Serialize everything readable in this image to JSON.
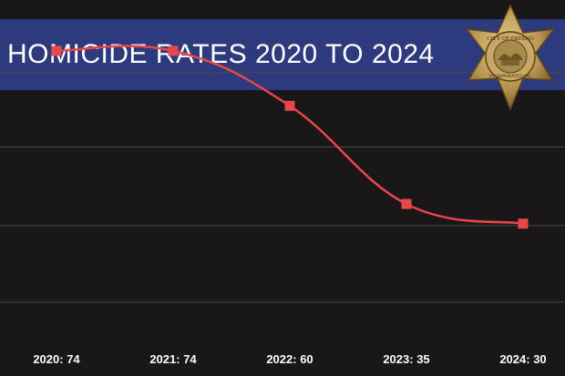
{
  "title": "HOMICIDE RATES 2020 TO 2024",
  "badge": {
    "icon": "city-of-fresno-police-badge-icon",
    "text_top": "CITY OF FRESNO",
    "text_bottom": "INCORPORATED 1885"
  },
  "colors": {
    "background": "#1a1718",
    "banner": "#2d3a7d",
    "line": "#e8474a",
    "marker": "#e8474a",
    "grid": "#4a4748",
    "badge_gold": "#b89550"
  },
  "chart_data": {
    "type": "line",
    "title": "HOMICIDE RATES 2020 TO 2024",
    "categories": [
      "2020: 74",
      "2021: 74",
      "2022: 60",
      "2023: 35",
      "2024: 30"
    ],
    "series": [
      {
        "values": [
          74,
          74,
          60,
          35,
          30
        ]
      }
    ],
    "xlabel": "",
    "ylabel": "",
    "ylim": [
      0,
      80
    ],
    "grid": true,
    "smooth": true,
    "legend": "none"
  }
}
